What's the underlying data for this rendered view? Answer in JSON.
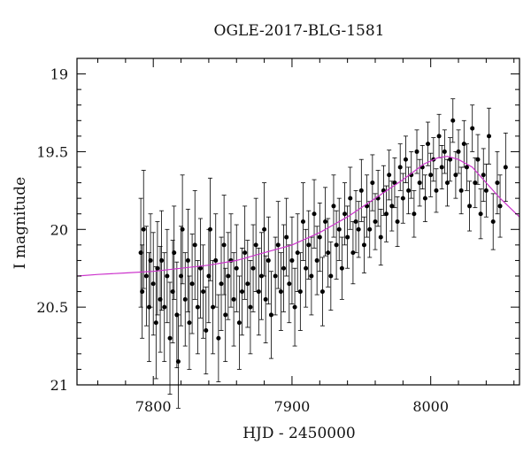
{
  "chart_data": {
    "type": "scatter",
    "title": "OGLE-2017-BLG-1581",
    "xlabel": "HJD - 2450000",
    "ylabel": "I magnitude",
    "xlim": [
      7745,
      8064
    ],
    "ylim": [
      21,
      18.9
    ],
    "y_inverted": true,
    "grid": false,
    "legend": "none",
    "x_ticks": [
      7800,
      7900,
      8000
    ],
    "y_ticks": [
      19,
      19.5,
      20,
      20.5,
      21
    ],
    "x_minor_step": 20,
    "y_minor_step": 0.1,
    "colors": {
      "points": "#000000",
      "model": "#cc33cc",
      "axes": "#000000"
    },
    "model": {
      "name": "",
      "x": [
        7745,
        7760,
        7780,
        7800,
        7820,
        7840,
        7860,
        7880,
        7900,
        7920,
        7940,
        7960,
        7980,
        7995,
        8005,
        8012,
        8020,
        8030,
        8040,
        8050,
        8064
      ],
      "y": [
        20.3,
        20.29,
        20.28,
        20.27,
        20.25,
        20.23,
        20.2,
        20.15,
        20.1,
        20.02,
        19.92,
        19.8,
        19.68,
        19.58,
        19.54,
        19.53,
        19.55,
        19.6,
        19.7,
        19.8,
        19.92
      ]
    },
    "series": [
      {
        "name": "",
        "x": [
          7791,
          7792,
          7793,
          7795,
          7797,
          7798,
          7800,
          7802,
          7803,
          7805,
          7806,
          7808,
          7810,
          7812,
          7814,
          7815,
          7817,
          7818,
          7820,
          7821,
          7823,
          7825,
          7826,
          7828,
          7830,
          7832,
          7834,
          7836,
          7838,
          7840,
          7841,
          7843,
          7845,
          7847,
          7849,
          7851,
          7852,
          7854,
          7856,
          7858,
          7860,
          7862,
          7864,
          7866,
          7868,
          7870,
          7872,
          7874,
          7876,
          7878,
          7880,
          7881,
          7883,
          7885,
          7888,
          7890,
          7892,
          7894,
          7896,
          7898,
          7900,
          7902,
          7904,
          7906,
          7908,
          7910,
          7912,
          7914,
          7916,
          7918,
          7920,
          7922,
          7924,
          7926,
          7928,
          7930,
          7932,
          7934,
          7936,
          7938,
          7940,
          7942,
          7944,
          7946,
          7948,
          7950,
          7952,
          7954,
          7956,
          7958,
          7960,
          7962,
          7964,
          7966,
          7968,
          7970,
          7972,
          7974,
          7976,
          7978,
          7980,
          7982,
          7984,
          7986,
          7988,
          7990,
          7992,
          7994,
          7996,
          7998,
          8000,
          8002,
          8004,
          8006,
          8008,
          8010,
          8012,
          8014,
          8016,
          8018,
          8020,
          8022,
          8024,
          8026,
          8028,
          8030,
          8032,
          8034,
          8036,
          8038,
          8040,
          8042,
          8045,
          8048,
          8050,
          8054
        ],
        "y": [
          20.15,
          20.4,
          20.0,
          20.3,
          20.5,
          20.2,
          20.35,
          20.6,
          20.25,
          20.45,
          20.2,
          20.5,
          20.3,
          20.7,
          20.4,
          20.15,
          20.55,
          20.85,
          20.3,
          20.0,
          20.45,
          20.2,
          20.6,
          20.35,
          20.1,
          20.5,
          20.25,
          20.4,
          20.65,
          20.3,
          20.0,
          20.5,
          20.2,
          20.7,
          20.35,
          20.1,
          20.55,
          20.3,
          20.2,
          20.45,
          20.25,
          20.6,
          20.4,
          20.15,
          20.35,
          20.5,
          20.25,
          20.1,
          20.4,
          20.3,
          20.0,
          20.45,
          20.2,
          20.55,
          20.3,
          20.1,
          20.4,
          20.25,
          20.05,
          20.35,
          20.2,
          20.5,
          20.15,
          20.4,
          19.95,
          20.25,
          20.1,
          20.3,
          19.9,
          20.2,
          20.05,
          20.4,
          19.95,
          20.15,
          20.3,
          19.85,
          20.1,
          20.0,
          20.25,
          19.9,
          20.05,
          19.8,
          20.15,
          19.95,
          20.0,
          19.75,
          20.1,
          19.85,
          20.0,
          19.7,
          19.95,
          19.8,
          20.05,
          19.75,
          19.9,
          19.65,
          19.85,
          19.7,
          19.95,
          19.6,
          19.8,
          19.55,
          19.75,
          19.65,
          19.9,
          19.5,
          19.7,
          19.6,
          19.8,
          19.45,
          19.65,
          19.55,
          19.75,
          19.4,
          19.6,
          19.5,
          19.7,
          19.55,
          19.3,
          19.65,
          19.5,
          19.75,
          19.45,
          19.6,
          19.85,
          19.35,
          19.7,
          19.55,
          19.9,
          19.65,
          19.75,
          19.4,
          19.95,
          19.7,
          19.85,
          19.6
        ],
        "err": [
          0.35,
          0.3,
          0.38,
          0.32,
          0.35,
          0.3,
          0.33,
          0.36,
          0.3,
          0.34,
          0.32,
          0.35,
          0.3,
          0.36,
          0.33,
          0.3,
          0.34,
          0.3,
          0.32,
          0.35,
          0.3,
          0.33,
          0.3,
          0.32,
          0.35,
          0.3,
          0.32,
          0.3,
          0.28,
          0.3,
          0.33,
          0.3,
          0.3,
          0.28,
          0.3,
          0.32,
          0.3,
          0.28,
          0.3,
          0.3,
          0.28,
          0.3,
          0.28,
          0.3,
          0.28,
          0.3,
          0.28,
          0.3,
          0.28,
          0.28,
          0.3,
          0.28,
          0.28,
          0.28,
          0.25,
          0.28,
          0.25,
          0.28,
          0.25,
          0.25,
          0.28,
          0.25,
          0.25,
          0.25,
          0.25,
          0.25,
          0.22,
          0.25,
          0.22,
          0.22,
          0.22,
          0.22,
          0.22,
          0.22,
          0.22,
          0.2,
          0.22,
          0.2,
          0.2,
          0.2,
          0.2,
          0.2,
          0.2,
          0.2,
          0.18,
          0.2,
          0.18,
          0.2,
          0.18,
          0.18,
          0.18,
          0.18,
          0.18,
          0.16,
          0.18,
          0.16,
          0.16,
          0.16,
          0.16,
          0.15,
          0.16,
          0.15,
          0.15,
          0.15,
          0.15,
          0.14,
          0.15,
          0.14,
          0.15,
          0.14,
          0.14,
          0.14,
          0.14,
          0.14,
          0.14,
          0.14,
          0.15,
          0.14,
          0.14,
          0.15,
          0.14,
          0.15,
          0.15,
          0.15,
          0.16,
          0.15,
          0.16,
          0.16,
          0.16,
          0.17,
          0.17,
          0.18,
          0.18,
          0.2,
          0.2,
          0.22
        ]
      }
    ]
  }
}
